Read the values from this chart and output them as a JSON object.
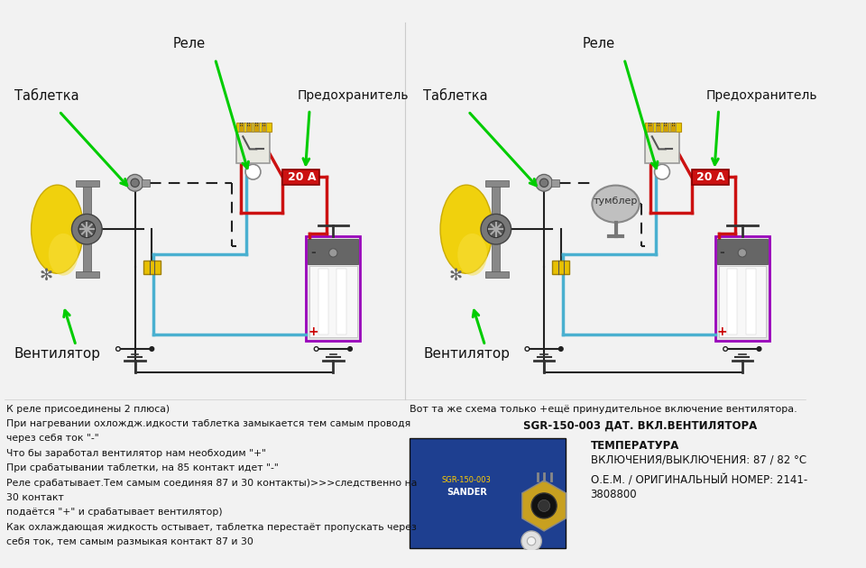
{
  "bg_color": "#f2f2f2",
  "left_diagram": {
    "rele_label": "Реле",
    "tabletka_label": "Таблетка",
    "predohranitel_label": "Предохранитель",
    "ventilator_label": "Вентилятор",
    "fuse_text": "20 А"
  },
  "right_diagram": {
    "rele_label": "Реле",
    "tabletka_label": "Таблетка",
    "predohranitel_label": "Предохранитель",
    "ventilator_label": "Вентилятор",
    "tumbler_label": "тумблер",
    "fuse_text": "20 А"
  },
  "bottom_left_text": [
    "К реле присоединены 2 плюса)",
    "При нагревании охлождж.идкости таблетка замыкается тем самым проводя",
    "через себя ток \"-\"",
    "Что бы заработал вентилятор нам необходим \"+\"",
    "При срабатывании таблетки, на 85 контакт идет \"-\"",
    "Реле срабатывает.Тем самым соединяя 87 и 30 контакты)>>>следственно на",
    "30 контакт",
    "подаётся \"+\" и срабатывает вентилятор)",
    "Как охлаждающая жидкость остывает, таблетка перестаёт пропускать через",
    "себя ток, тем самым размыкая контакт 87 и 30"
  ],
  "bottom_right_line1": "Вот та же схема только +ещё принудительное включение вентилятора.",
  "bottom_right_line2": "SGR-150-003 ДАТ. ВКЛ.ВЕНТИЛЯТОРА",
  "bottom_right_line3": "ТЕМПЕРАТУРА",
  "bottom_right_line4": "ВКЛЮЧЕНИЯ/ВЫКЛЮЧЕНИЯ: 87 / 82 °C",
  "bottom_right_line5": "О.Е.М. / ОРИГИНАЛЬНЫЙ НОМЕР: 2141-",
  "bottom_right_line6": "3808800"
}
